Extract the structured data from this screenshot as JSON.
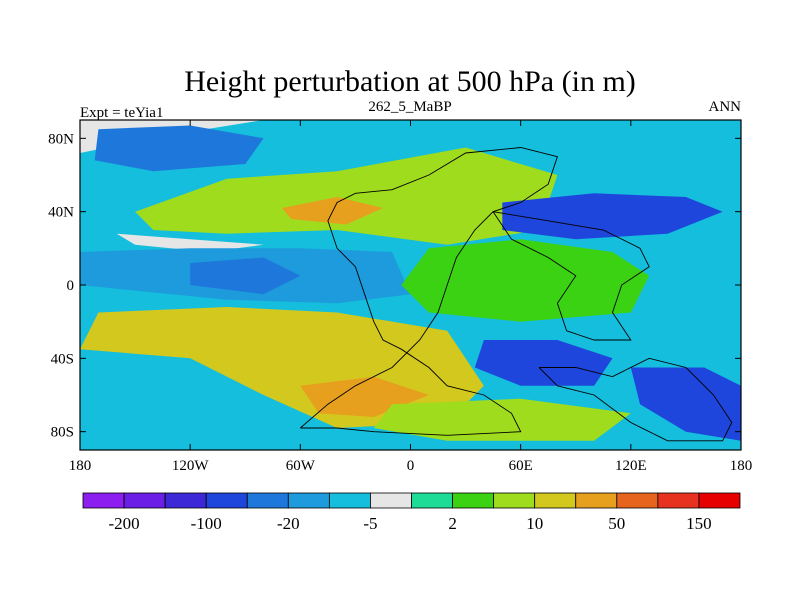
{
  "chart_data": {
    "type": "contour-map",
    "title": "Height perturbation at 500 hPa (in m)",
    "left_label": "Expt = teYia1",
    "center_label": "262_5_MaBP",
    "right_label": "ANN",
    "xlim": [
      -180,
      180
    ],
    "ylim": [
      -90,
      90
    ],
    "x_ticks": [
      {
        "value": -180,
        "label": "180"
      },
      {
        "value": -120,
        "label": "120W"
      },
      {
        "value": -60,
        "label": "60W"
      },
      {
        "value": 0,
        "label": "0"
      },
      {
        "value": 60,
        "label": "60E"
      },
      {
        "value": 120,
        "label": "120E"
      },
      {
        "value": 180,
        "label": "180"
      }
    ],
    "y_ticks": [
      {
        "value": 80,
        "label": "80N"
      },
      {
        "value": 40,
        "label": "40N"
      },
      {
        "value": 0,
        "label": "0"
      },
      {
        "value": -40,
        "label": "40S"
      },
      {
        "value": -80,
        "label": "80S"
      }
    ],
    "colorbar": {
      "colors": [
        "#8c1ef0",
        "#6a1ee6",
        "#3c28d7",
        "#1e46dc",
        "#1e78dc",
        "#1e9bdc",
        "#14bedc",
        "#e6e6e6",
        "#1edc96",
        "#3cd214",
        "#a0dc1e",
        "#d2c81e",
        "#e6a01e",
        "#e6641e",
        "#e6321e",
        "#e60000"
      ],
      "tick_labels": [
        {
          "boundary": 1,
          "label": "-200"
        },
        {
          "boundary": 3,
          "label": "-100"
        },
        {
          "boundary": 5,
          "label": "-20"
        },
        {
          "boundary": 7,
          "label": "-5"
        },
        {
          "boundary": 9,
          "label": "2"
        },
        {
          "boundary": 11,
          "label": "10"
        },
        {
          "boundary": 13,
          "label": "50"
        },
        {
          "boundary": 15,
          "label": "150"
        }
      ]
    },
    "bands": [
      {
        "name": "band-80n",
        "fill": "#e6e6e6",
        "points": [
          [
            -180,
            90
          ],
          [
            -180,
            72
          ],
          [
            -130,
            82
          ],
          [
            -80,
            90
          ]
        ]
      },
      {
        "name": "band-70n-blue",
        "fill": "#1e78dc",
        "points": [
          [
            -170,
            85
          ],
          [
            -120,
            87
          ],
          [
            -80,
            80
          ],
          [
            -90,
            66
          ],
          [
            -140,
            62
          ],
          [
            -172,
            68
          ]
        ]
      },
      {
        "name": "band-40n-green",
        "fill": "#a0dc1e",
        "points": [
          [
            -150,
            40
          ],
          [
            -100,
            58
          ],
          [
            -40,
            62
          ],
          [
            30,
            75
          ],
          [
            80,
            60
          ],
          [
            70,
            30
          ],
          [
            20,
            22
          ],
          [
            -40,
            30
          ],
          [
            -100,
            28
          ],
          [
            -140,
            30
          ]
        ]
      },
      {
        "name": "band-45n-orange",
        "fill": "#e6a01e",
        "points": [
          [
            -70,
            42
          ],
          [
            -40,
            48
          ],
          [
            -15,
            42
          ],
          [
            -35,
            33
          ],
          [
            -65,
            36
          ]
        ]
      },
      {
        "name": "band-20n-white",
        "fill": "#e6e6e6",
        "points": [
          [
            -160,
            28
          ],
          [
            -120,
            25
          ],
          [
            -80,
            22
          ],
          [
            -110,
            18
          ],
          [
            -150,
            22
          ]
        ]
      },
      {
        "name": "band-equator-blue",
        "fill": "#1e9bdc",
        "points": [
          [
            -180,
            18
          ],
          [
            -120,
            20
          ],
          [
            -60,
            20
          ],
          [
            -10,
            18
          ],
          [
            0,
            -5
          ],
          [
            -40,
            -10
          ],
          [
            -100,
            -8
          ],
          [
            -160,
            -2
          ],
          [
            -180,
            0
          ]
        ]
      },
      {
        "name": "band-equator-dark",
        "fill": "#1e78dc",
        "points": [
          [
            -120,
            12
          ],
          [
            -80,
            15
          ],
          [
            -60,
            5
          ],
          [
            -80,
            -5
          ],
          [
            -120,
            0
          ]
        ]
      },
      {
        "name": "band-equator-green",
        "fill": "#3cd214",
        "points": [
          [
            10,
            20
          ],
          [
            60,
            25
          ],
          [
            110,
            18
          ],
          [
            130,
            5
          ],
          [
            120,
            -15
          ],
          [
            60,
            -20
          ],
          [
            10,
            -15
          ],
          [
            -5,
            0
          ]
        ]
      },
      {
        "name": "band-20s-yellow",
        "fill": "#d2c81e",
        "points": [
          [
            -170,
            -15
          ],
          [
            -100,
            -12
          ],
          [
            -40,
            -15
          ],
          [
            20,
            -25
          ],
          [
            40,
            -55
          ],
          [
            20,
            -75
          ],
          [
            -40,
            -78
          ],
          [
            -80,
            -60
          ],
          [
            -120,
            -40
          ],
          [
            -180,
            -35
          ]
        ]
      },
      {
        "name": "band-50s-orange",
        "fill": "#e6a01e",
        "points": [
          [
            -60,
            -55
          ],
          [
            -20,
            -50
          ],
          [
            10,
            -60
          ],
          [
            -20,
            -72
          ],
          [
            -50,
            -70
          ]
        ]
      },
      {
        "name": "band-60n-blue",
        "fill": "#1e46dc",
        "points": [
          [
            50,
            45
          ],
          [
            100,
            50
          ],
          [
            150,
            48
          ],
          [
            170,
            40
          ],
          [
            140,
            28
          ],
          [
            90,
            25
          ],
          [
            50,
            30
          ]
        ]
      },
      {
        "name": "band-40s-blue",
        "fill": "#1e46dc",
        "points": [
          [
            40,
            -30
          ],
          [
            80,
            -30
          ],
          [
            110,
            -40
          ],
          [
            100,
            -55
          ],
          [
            60,
            -55
          ],
          [
            35,
            -45
          ]
        ]
      },
      {
        "name": "band-60s-blue",
        "fill": "#1e46dc",
        "points": [
          [
            120,
            -45
          ],
          [
            160,
            -45
          ],
          [
            180,
            -55
          ],
          [
            180,
            -85
          ],
          [
            150,
            -80
          ],
          [
            125,
            -65
          ]
        ]
      },
      {
        "name": "band-70s-green",
        "fill": "#a0dc1e",
        "points": [
          [
            -10,
            -65
          ],
          [
            60,
            -62
          ],
          [
            120,
            -70
          ],
          [
            100,
            -85
          ],
          [
            20,
            -85
          ],
          [
            -20,
            -78
          ]
        ]
      }
    ],
    "coastlines": [
      {
        "name": "continent-outline-main",
        "points": [
          [
            -60,
            -78
          ],
          [
            -40,
            -78
          ],
          [
            -20,
            -80
          ],
          [
            20,
            -82
          ],
          [
            60,
            -80
          ],
          [
            55,
            -70
          ],
          [
            40,
            -60
          ],
          [
            20,
            -55
          ],
          [
            10,
            -45
          ],
          [
            -5,
            -35
          ],
          [
            -15,
            -30
          ],
          [
            -20,
            -20
          ],
          [
            -25,
            -5
          ],
          [
            -30,
            10
          ],
          [
            -40,
            20
          ],
          [
            -45,
            35
          ],
          [
            -40,
            45
          ],
          [
            -30,
            50
          ],
          [
            -10,
            52
          ],
          [
            10,
            60
          ],
          [
            30,
            72
          ],
          [
            60,
            75
          ],
          [
            80,
            70
          ],
          [
            75,
            55
          ],
          [
            60,
            45
          ],
          [
            45,
            40
          ],
          [
            35,
            30
          ],
          [
            25,
            15
          ],
          [
            20,
            0
          ],
          [
            15,
            -15
          ],
          [
            5,
            -30
          ],
          [
            -10,
            -45
          ],
          [
            -30,
            -55
          ],
          [
            -45,
            -65
          ],
          [
            -60,
            -78
          ]
        ]
      },
      {
        "name": "continent-outline-east",
        "points": [
          [
            45,
            40
          ],
          [
            75,
            35
          ],
          [
            105,
            30
          ],
          [
            125,
            20
          ],
          [
            130,
            10
          ],
          [
            115,
            0
          ],
          [
            110,
            -15
          ],
          [
            120,
            -30
          ],
          [
            100,
            -30
          ],
          [
            85,
            -25
          ],
          [
            80,
            -10
          ],
          [
            90,
            5
          ],
          [
            75,
            15
          ],
          [
            55,
            25
          ],
          [
            45,
            40
          ]
        ]
      },
      {
        "name": "continent-outline-south",
        "points": [
          [
            70,
            -45
          ],
          [
            90,
            -45
          ],
          [
            110,
            -50
          ],
          [
            130,
            -40
          ],
          [
            150,
            -45
          ],
          [
            165,
            -60
          ],
          [
            175,
            -75
          ],
          [
            170,
            -85
          ],
          [
            140,
            -85
          ],
          [
            120,
            -75
          ],
          [
            100,
            -60
          ],
          [
            80,
            -55
          ],
          [
            70,
            -45
          ]
        ]
      }
    ]
  }
}
